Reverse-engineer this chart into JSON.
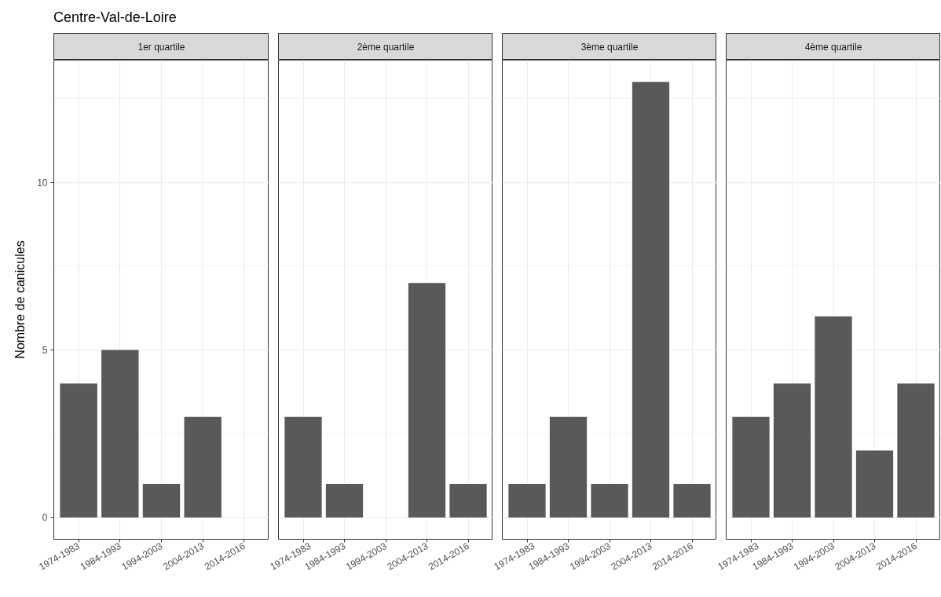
{
  "chart_data": [
    {
      "type": "bar",
      "title": "Centre-Val-de-Loire",
      "subtitle": "1er quartile",
      "ylabel": "Nombre de canicules",
      "categories": [
        "1974-1983",
        "1984-1993",
        "1994-2003",
        "2004-2013",
        "2014-2016"
      ],
      "values": [
        4,
        5,
        1,
        3,
        null
      ],
      "color": "#595959",
      "ylim": [
        -0.65,
        13.65
      ],
      "yticks": [
        0,
        5,
        10
      ],
      "grid": true
    },
    {
      "type": "bar",
      "subtitle": "2ème quartile",
      "categories": [
        "1974-1983",
        "1984-1993",
        "1994-2003",
        "2004-2013",
        "2014-2016"
      ],
      "values": [
        3,
        1,
        null,
        7,
        1
      ],
      "color": "#595959",
      "ylim": [
        -0.65,
        13.65
      ],
      "yticks": [
        0,
        5,
        10
      ],
      "grid": true,
      "tick_labels": "x"
    },
    {
      "type": "bar",
      "subtitle": "3ème quartile",
      "categories": [
        "1974-1983",
        "1984-1993",
        "1994-2003",
        "2004-2013",
        "2014-2016"
      ],
      "values": [
        1,
        3,
        1,
        13,
        1
      ],
      "color": "#595959",
      "ylim": [
        -0.65,
        13.65
      ],
      "yticks": [
        0,
        5,
        10
      ],
      "grid": true,
      "tick_labels": "x"
    },
    {
      "type": "bar",
      "subtitle": "4ème quartile",
      "categories": [
        "1974-1983",
        "1984-1993",
        "1994-2003",
        "2004-2013",
        "2014-2016"
      ],
      "values": [
        3,
        4,
        6,
        2,
        4
      ],
      "color": "#595959",
      "ylim": [
        -0.65,
        13.65
      ],
      "yticks": [
        0,
        5,
        10
      ],
      "grid": true,
      "tick_labels": "x"
    }
  ]
}
